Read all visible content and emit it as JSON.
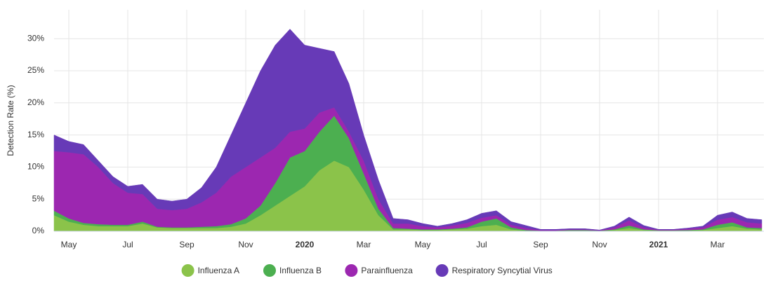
{
  "chart_data": {
    "type": "stacked-area",
    "y_label": "Detection Rate (%)",
    "categories": [
      null,
      "May",
      null,
      null,
      null,
      "Jul",
      null,
      null,
      null,
      "Sep",
      null,
      null,
      null,
      "Nov",
      null,
      null,
      null,
      "2020",
      null,
      null,
      null,
      "Mar",
      null,
      null,
      null,
      "May",
      null,
      null,
      null,
      "Jul",
      null,
      null,
      null,
      "Sep",
      null,
      null,
      null,
      "Nov",
      null,
      null,
      null,
      "2021",
      null,
      null,
      null,
      "Mar",
      null,
      null,
      null
    ],
    "series": [
      {
        "name": "Influenza A",
        "color": "#8bc34a",
        "values": [
          2.5,
          1.5,
          1,
          0.8,
          0.8,
          0.8,
          1.2,
          0.6,
          0.5,
          0.5,
          0.5,
          0.5,
          0.7,
          1.2,
          2.5,
          4,
          5.5,
          7,
          9.5,
          11,
          10,
          6.5,
          2.5,
          0.3,
          0.3,
          0.2,
          0.2,
          0.3,
          0.4,
          0.8,
          1,
          0.3,
          0.1,
          0.05,
          0.05,
          0.1,
          0.1,
          0.05,
          0.2,
          0.5,
          0.2,
          0.1,
          0.1,
          0.1,
          0.2,
          0.5,
          0.8,
          0.4,
          0.3
        ]
      },
      {
        "name": "Influenza B",
        "color": "#4caf50",
        "values": [
          0.7,
          0.5,
          0.3,
          0.3,
          0.2,
          0.2,
          0.3,
          0.1,
          0.1,
          0.1,
          0.2,
          0.3,
          0.4,
          0.8,
          1.5,
          3.5,
          6,
          5.5,
          6,
          7,
          4.5,
          2.5,
          1,
          0.2,
          0.1,
          0.1,
          0.1,
          0.1,
          0.2,
          0.7,
          1,
          0.3,
          0.1,
          0.05,
          0.05,
          0.1,
          0.1,
          0.05,
          0.1,
          0.4,
          0.1,
          0.05,
          0.05,
          0.1,
          0.1,
          0.5,
          0.6,
          0.2,
          0.2
        ]
      },
      {
        "name": "Parainfluenza",
        "color": "#9c27b0",
        "values": [
          9.3,
          10.3,
          10.7,
          8.9,
          6.5,
          5,
          4.3,
          2.8,
          2.7,
          2.9,
          3.8,
          5.2,
          7.4,
          8,
          7.5,
          5.5,
          4,
          3.5,
          3,
          1.3,
          1,
          2,
          1.5,
          0.7,
          0.8,
          0.5,
          0.3,
          0.5,
          0.7,
          0.6,
          0.5,
          0.4,
          0.3,
          0.1,
          0.1,
          0.1,
          0.1,
          0.05,
          0.3,
          0.8,
          0.3,
          0.1,
          0.1,
          0.2,
          0.3,
          0.8,
          0.8,
          0.8,
          0.7
        ]
      },
      {
        "name": "Respiratory Syncytial Virus",
        "color": "#673ab7",
        "values": [
          2.5,
          1.7,
          1.5,
          1,
          1,
          1,
          1.5,
          1.5,
          1.4,
          1.5,
          2.3,
          4,
          6.5,
          10,
          13.5,
          16,
          16,
          13,
          10,
          8.7,
          7.5,
          4,
          3,
          0.8,
          0.6,
          0.4,
          0.2,
          0.3,
          0.5,
          0.7,
          0.7,
          0.5,
          0.4,
          0.1,
          0.1,
          0.1,
          0.1,
          0.05,
          0.2,
          0.5,
          0.3,
          0.05,
          0.05,
          0.1,
          0.2,
          0.7,
          0.8,
          0.6,
          0.6
        ]
      }
    ],
    "ylim": [
      0,
      34.5
    ],
    "yticks": [
      {
        "value": 0,
        "label": "0%"
      },
      {
        "value": 5,
        "label": "5%"
      },
      {
        "value": 10,
        "label": "10%"
      },
      {
        "value": 15,
        "label": "15%"
      },
      {
        "value": 20,
        "label": "20%"
      },
      {
        "value": 25,
        "label": "25%"
      },
      {
        "value": 30,
        "label": "30%"
      }
    ],
    "grid": true,
    "legend": "bottom"
  }
}
